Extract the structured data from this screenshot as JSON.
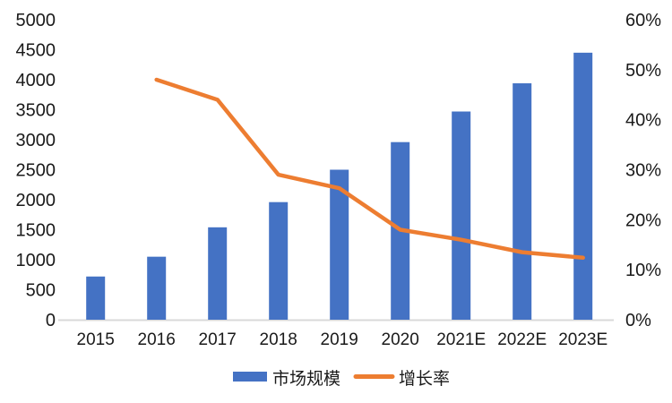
{
  "chart_data": {
    "type": "bar",
    "subtype": "combo-bar-line-dual-axis",
    "title": "",
    "categories": [
      "2015",
      "2016",
      "2017",
      "2018",
      "2019",
      "2020",
      "2021E",
      "2022E",
      "2023E"
    ],
    "series": [
      {
        "name": "市场规模",
        "type": "bar",
        "axis": "left",
        "color": "#4472C4",
        "values": [
          720,
          1050,
          1540,
          1960,
          2500,
          2960,
          3470,
          3940,
          4450
        ]
      },
      {
        "name": "增长率",
        "type": "line",
        "axis": "right",
        "color": "#ED7D31",
        "values": [
          null,
          48,
          44,
          29,
          26.3,
          18,
          16,
          13.5,
          12.4
        ]
      }
    ],
    "left_axis": {
      "min": 0,
      "max": 5000,
      "step": 500,
      "tick_labels": [
        "0",
        "500",
        "1000",
        "1500",
        "2000",
        "2500",
        "3000",
        "3500",
        "4000",
        "4500",
        "5000"
      ]
    },
    "right_axis": {
      "min": 0,
      "max": 60,
      "step": 10,
      "tick_labels": [
        "0%",
        "10%",
        "20%",
        "30%",
        "40%",
        "50%",
        "60%"
      ]
    },
    "grid": false,
    "legend_position": "bottom",
    "legend": [
      "市场规模",
      "增长率"
    ]
  },
  "colors": {
    "bar": "#4472C4",
    "line": "#ED7D31",
    "axis_line": "#D9D9D9",
    "text": "#1a1a1a",
    "background": "#FFFFFF"
  }
}
